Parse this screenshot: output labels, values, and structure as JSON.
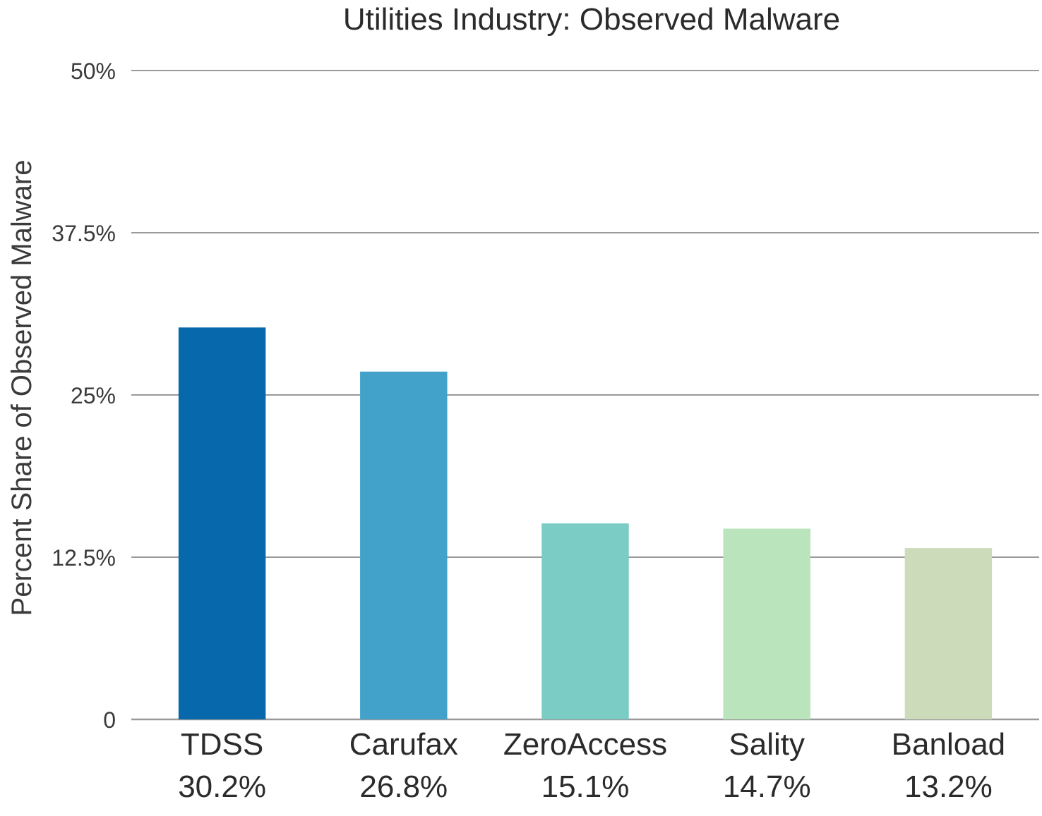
{
  "chart_data": {
    "type": "bar",
    "title": "Utilities Industry: Observed Malware",
    "xlabel": "",
    "ylabel": "Percent Share of Observed Malware",
    "ylim": [
      0,
      50
    ],
    "yticks": [
      0,
      12.5,
      25,
      37.5,
      50
    ],
    "ytick_labels": [
      "0",
      "12.5%",
      "25%",
      "37.5%",
      "50%"
    ],
    "grid": true,
    "categories": [
      "TDSS",
      "Carufax",
      "ZeroAccess",
      "Sality",
      "Banload"
    ],
    "values": [
      30.2,
      26.8,
      15.1,
      14.7,
      13.2
    ],
    "value_labels": [
      "30.2%",
      "26.8%",
      "15.1%",
      "14.7%",
      "13.2%"
    ],
    "colors": [
      "#0868ac",
      "#43a2ca",
      "#7bccc4",
      "#bae4bc",
      "#ccdcbb"
    ]
  }
}
